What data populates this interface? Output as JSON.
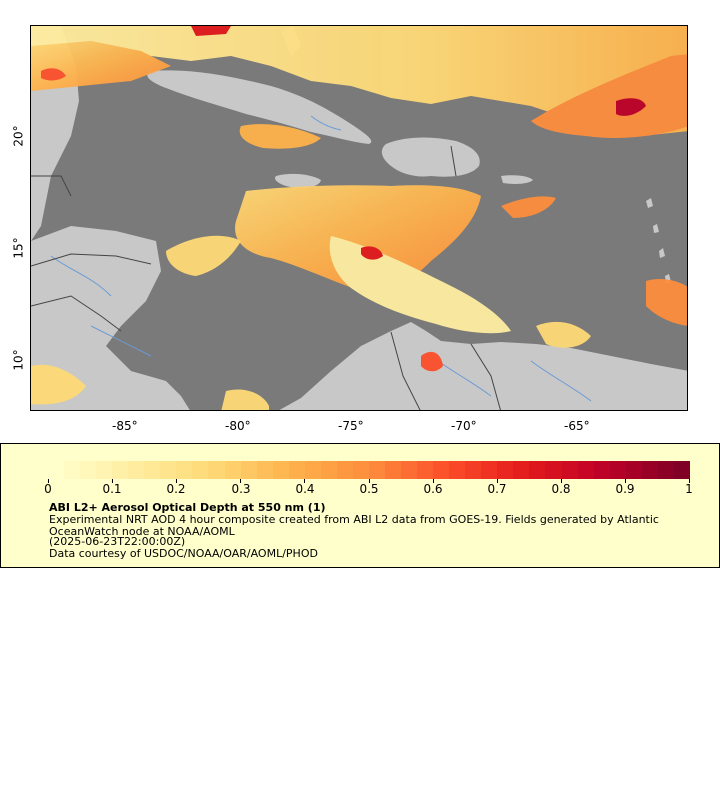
{
  "map": {
    "x_ticks": [
      "-85°",
      "-80°",
      "-75°",
      "-70°",
      "-65°"
    ],
    "y_ticks": [
      "20°",
      "15°",
      "10°"
    ],
    "x_tick_values": [
      -85,
      -80,
      -75,
      -70,
      -65
    ],
    "y_tick_values": [
      20,
      15,
      10
    ],
    "lon_range": [
      -89,
      -60
    ],
    "lat_range": [
      8,
      25
    ],
    "colors": {
      "ocean": "#7a7a7a",
      "land": "#c8c8c8",
      "rivers": "#6a9bd6",
      "borders": "#444444"
    }
  },
  "legend": {
    "colorbar_ticks": [
      "0",
      "0.1",
      "0.2",
      "0.3",
      "0.4",
      "0.5",
      "0.6",
      "0.7",
      "0.8",
      "0.9",
      "1"
    ],
    "colorbar_values": [
      0,
      0.1,
      0.2,
      0.3,
      0.4,
      0.5,
      0.6,
      0.7,
      0.8,
      0.9,
      1
    ],
    "colormap": [
      "#ffffcc",
      "#ffeda0",
      "#fed976",
      "#feb24c",
      "#fd8d3c",
      "#fc4e2a",
      "#e31a1c",
      "#bd0026",
      "#800026"
    ],
    "title": "ABI L2+ Aerosol Optical Depth at 550 nm (1)",
    "description": "Experimental NRT AOD 4 hour composite created from ABI L2 data from GOES-19. Fields generated by Atlantic OceanWatch node at NOAA/AOML",
    "time": "(2025-06-23T22:00:00Z)",
    "credit": "Data courtesy of USDOC/NOAA/OAR/AOML/PHOD"
  }
}
